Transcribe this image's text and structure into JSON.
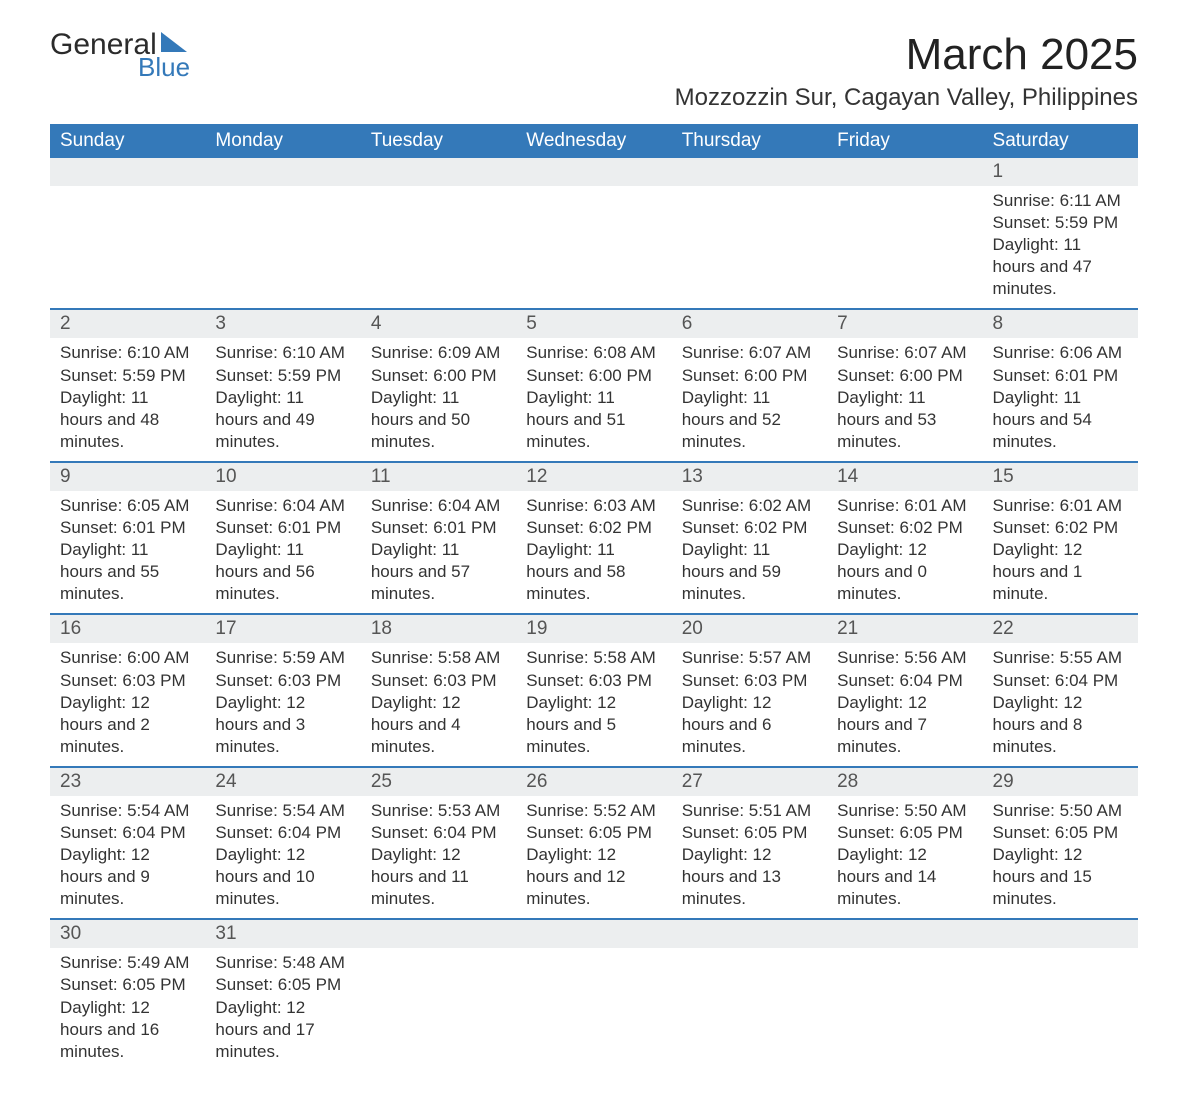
{
  "logo": {
    "text_top": "General",
    "text_bottom": "Blue",
    "accent_color": "#3479b9"
  },
  "header": {
    "title": "March 2025",
    "location": "Mozzozzin Sur, Cagayan Valley, Philippines"
  },
  "colors": {
    "header_bg": "#3479b9",
    "header_text": "#ffffff",
    "daynum_bg": "#eceeef",
    "row_divider": "#3479b9",
    "body_text": "#333333",
    "page_bg": "#ffffff"
  },
  "typography": {
    "title_fontsize": 44,
    "location_fontsize": 24,
    "weekday_fontsize": 19,
    "daynum_fontsize": 19,
    "cell_fontsize": 17
  },
  "calendar": {
    "type": "table",
    "columns": [
      "Sunday",
      "Monday",
      "Tuesday",
      "Wednesday",
      "Thursday",
      "Friday",
      "Saturday"
    ],
    "weeks": [
      [
        null,
        null,
        null,
        null,
        null,
        null,
        {
          "d": "1",
          "sr": "Sunrise: 6:11 AM",
          "ss": "Sunset: 5:59 PM",
          "dl": "Daylight: 11 hours and 47 minutes."
        }
      ],
      [
        {
          "d": "2",
          "sr": "Sunrise: 6:10 AM",
          "ss": "Sunset: 5:59 PM",
          "dl": "Daylight: 11 hours and 48 minutes."
        },
        {
          "d": "3",
          "sr": "Sunrise: 6:10 AM",
          "ss": "Sunset: 5:59 PM",
          "dl": "Daylight: 11 hours and 49 minutes."
        },
        {
          "d": "4",
          "sr": "Sunrise: 6:09 AM",
          "ss": "Sunset: 6:00 PM",
          "dl": "Daylight: 11 hours and 50 minutes."
        },
        {
          "d": "5",
          "sr": "Sunrise: 6:08 AM",
          "ss": "Sunset: 6:00 PM",
          "dl": "Daylight: 11 hours and 51 minutes."
        },
        {
          "d": "6",
          "sr": "Sunrise: 6:07 AM",
          "ss": "Sunset: 6:00 PM",
          "dl": "Daylight: 11 hours and 52 minutes."
        },
        {
          "d": "7",
          "sr": "Sunrise: 6:07 AM",
          "ss": "Sunset: 6:00 PM",
          "dl": "Daylight: 11 hours and 53 minutes."
        },
        {
          "d": "8",
          "sr": "Sunrise: 6:06 AM",
          "ss": "Sunset: 6:01 PM",
          "dl": "Daylight: 11 hours and 54 minutes."
        }
      ],
      [
        {
          "d": "9",
          "sr": "Sunrise: 6:05 AM",
          "ss": "Sunset: 6:01 PM",
          "dl": "Daylight: 11 hours and 55 minutes."
        },
        {
          "d": "10",
          "sr": "Sunrise: 6:04 AM",
          "ss": "Sunset: 6:01 PM",
          "dl": "Daylight: 11 hours and 56 minutes."
        },
        {
          "d": "11",
          "sr": "Sunrise: 6:04 AM",
          "ss": "Sunset: 6:01 PM",
          "dl": "Daylight: 11 hours and 57 minutes."
        },
        {
          "d": "12",
          "sr": "Sunrise: 6:03 AM",
          "ss": "Sunset: 6:02 PM",
          "dl": "Daylight: 11 hours and 58 minutes."
        },
        {
          "d": "13",
          "sr": "Sunrise: 6:02 AM",
          "ss": "Sunset: 6:02 PM",
          "dl": "Daylight: 11 hours and 59 minutes."
        },
        {
          "d": "14",
          "sr": "Sunrise: 6:01 AM",
          "ss": "Sunset: 6:02 PM",
          "dl": "Daylight: 12 hours and 0 minutes."
        },
        {
          "d": "15",
          "sr": "Sunrise: 6:01 AM",
          "ss": "Sunset: 6:02 PM",
          "dl": "Daylight: 12 hours and 1 minute."
        }
      ],
      [
        {
          "d": "16",
          "sr": "Sunrise: 6:00 AM",
          "ss": "Sunset: 6:03 PM",
          "dl": "Daylight: 12 hours and 2 minutes."
        },
        {
          "d": "17",
          "sr": "Sunrise: 5:59 AM",
          "ss": "Sunset: 6:03 PM",
          "dl": "Daylight: 12 hours and 3 minutes."
        },
        {
          "d": "18",
          "sr": "Sunrise: 5:58 AM",
          "ss": "Sunset: 6:03 PM",
          "dl": "Daylight: 12 hours and 4 minutes."
        },
        {
          "d": "19",
          "sr": "Sunrise: 5:58 AM",
          "ss": "Sunset: 6:03 PM",
          "dl": "Daylight: 12 hours and 5 minutes."
        },
        {
          "d": "20",
          "sr": "Sunrise: 5:57 AM",
          "ss": "Sunset: 6:03 PM",
          "dl": "Daylight: 12 hours and 6 minutes."
        },
        {
          "d": "21",
          "sr": "Sunrise: 5:56 AM",
          "ss": "Sunset: 6:04 PM",
          "dl": "Daylight: 12 hours and 7 minutes."
        },
        {
          "d": "22",
          "sr": "Sunrise: 5:55 AM",
          "ss": "Sunset: 6:04 PM",
          "dl": "Daylight: 12 hours and 8 minutes."
        }
      ],
      [
        {
          "d": "23",
          "sr": "Sunrise: 5:54 AM",
          "ss": "Sunset: 6:04 PM",
          "dl": "Daylight: 12 hours and 9 minutes."
        },
        {
          "d": "24",
          "sr": "Sunrise: 5:54 AM",
          "ss": "Sunset: 6:04 PM",
          "dl": "Daylight: 12 hours and 10 minutes."
        },
        {
          "d": "25",
          "sr": "Sunrise: 5:53 AM",
          "ss": "Sunset: 6:04 PM",
          "dl": "Daylight: 12 hours and 11 minutes."
        },
        {
          "d": "26",
          "sr": "Sunrise: 5:52 AM",
          "ss": "Sunset: 6:05 PM",
          "dl": "Daylight: 12 hours and 12 minutes."
        },
        {
          "d": "27",
          "sr": "Sunrise: 5:51 AM",
          "ss": "Sunset: 6:05 PM",
          "dl": "Daylight: 12 hours and 13 minutes."
        },
        {
          "d": "28",
          "sr": "Sunrise: 5:50 AM",
          "ss": "Sunset: 6:05 PM",
          "dl": "Daylight: 12 hours and 14 minutes."
        },
        {
          "d": "29",
          "sr": "Sunrise: 5:50 AM",
          "ss": "Sunset: 6:05 PM",
          "dl": "Daylight: 12 hours and 15 minutes."
        }
      ],
      [
        {
          "d": "30",
          "sr": "Sunrise: 5:49 AM",
          "ss": "Sunset: 6:05 PM",
          "dl": "Daylight: 12 hours and 16 minutes."
        },
        {
          "d": "31",
          "sr": "Sunrise: 5:48 AM",
          "ss": "Sunset: 6:05 PM",
          "dl": "Daylight: 12 hours and 17 minutes."
        },
        null,
        null,
        null,
        null,
        null
      ]
    ]
  }
}
